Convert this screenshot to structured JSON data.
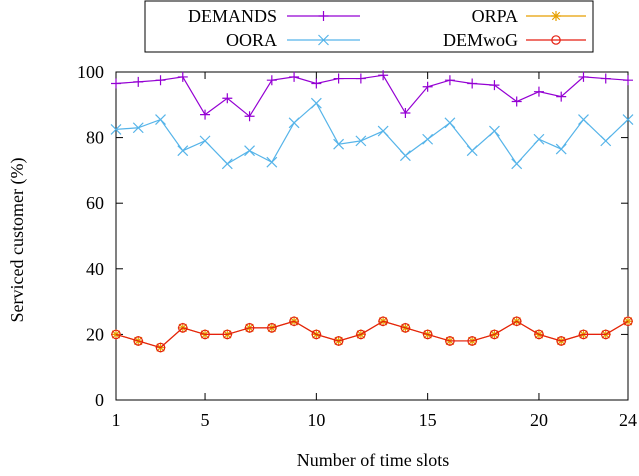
{
  "chart_data": {
    "type": "line",
    "xlabel": "Number of time slots",
    "ylabel": "Serviced customer (%)",
    "xlim": [
      1,
      24
    ],
    "ylim": [
      0,
      100
    ],
    "xticks": [
      1,
      5,
      10,
      15,
      20,
      24
    ],
    "yticks": [
      0,
      20,
      40,
      60,
      80,
      100
    ],
    "grid": false,
    "legend_position": "top, above plot, boxed, two columns",
    "x": [
      1,
      2,
      3,
      4,
      5,
      6,
      7,
      8,
      9,
      10,
      11,
      12,
      13,
      14,
      15,
      16,
      17,
      18,
      19,
      20,
      21,
      22,
      23,
      24
    ],
    "series": [
      {
        "name": "DEMANDS",
        "color": "#9400d3",
        "marker": "plus",
        "values": [
          96.5,
          97,
          97.5,
          98.5,
          87,
          92,
          86.5,
          97.5,
          98.5,
          96.5,
          98,
          98,
          99,
          87.5,
          95.5,
          97.5,
          96.5,
          96,
          91,
          94,
          92.5,
          98.5,
          98,
          97.5
        ]
      },
      {
        "name": "OORA",
        "color": "#56b4e9",
        "marker": "x",
        "values": [
          82.5,
          83,
          85.5,
          76,
          79,
          72,
          76,
          72.5,
          84.5,
          90.5,
          78,
          79,
          82,
          74.5,
          79.5,
          84.5,
          76,
          82,
          72,
          79.5,
          76.5,
          85.5,
          79,
          85.5
        ]
      },
      {
        "name": "ORPA",
        "color": "#e69f00",
        "marker": "star",
        "values": [
          20,
          18,
          16,
          22,
          20,
          20,
          22,
          22,
          24,
          20,
          18,
          20,
          24,
          22,
          20,
          18,
          18,
          20,
          24,
          20,
          18,
          20,
          20,
          24
        ]
      },
      {
        "name": "DEMwoG",
        "color": "#e51e10",
        "marker": "circle",
        "values": [
          20,
          18,
          16,
          22,
          20,
          20,
          22,
          22,
          24,
          20,
          18,
          20,
          24,
          22,
          20,
          18,
          18,
          20,
          24,
          20,
          18,
          20,
          20,
          24
        ]
      }
    ]
  }
}
